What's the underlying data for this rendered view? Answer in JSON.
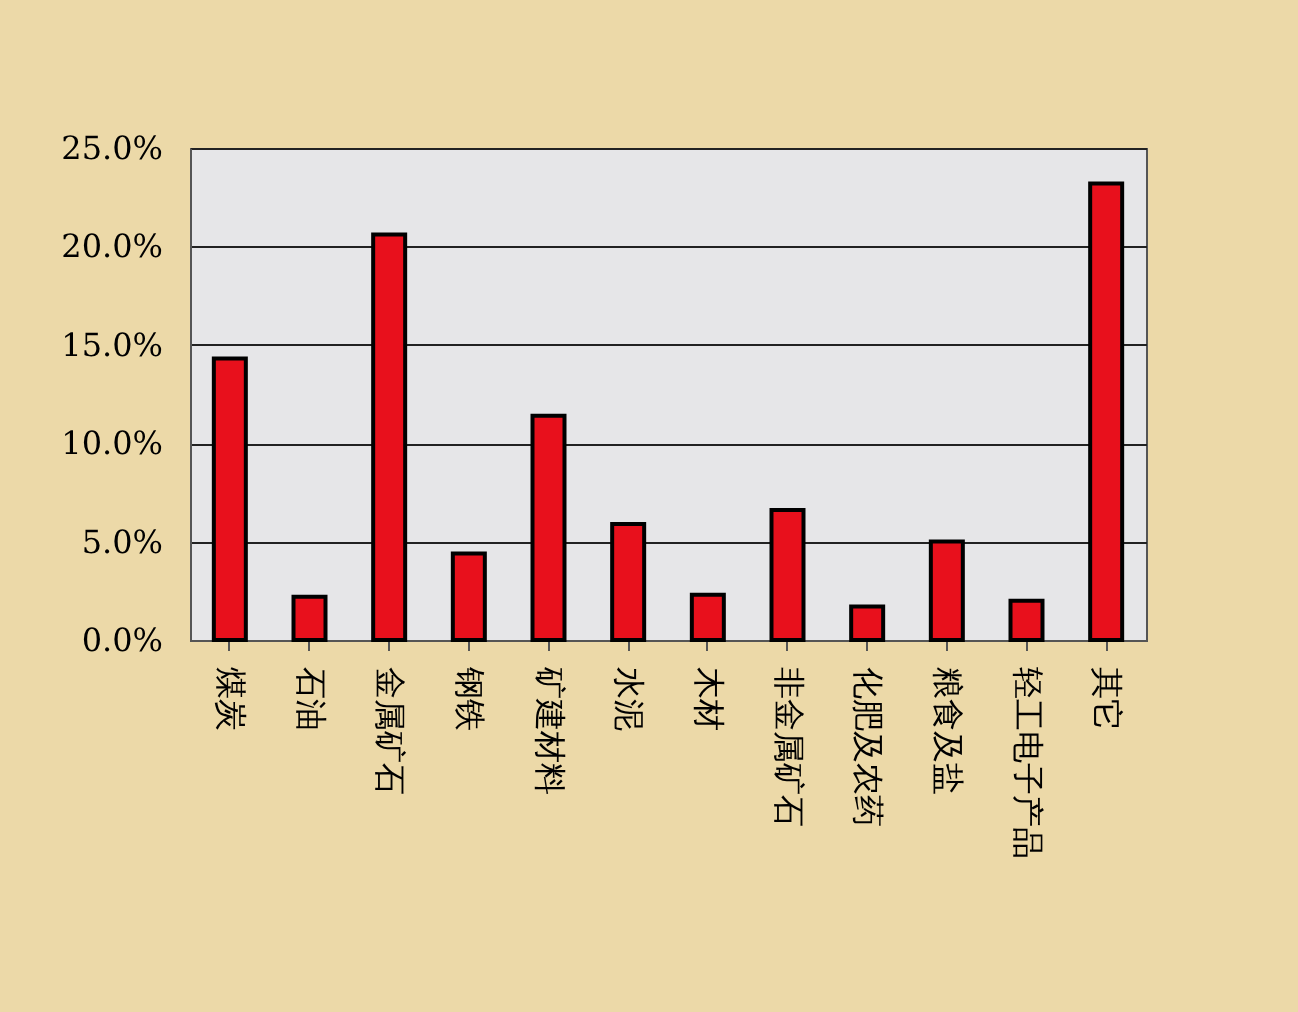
{
  "chart_data": {
    "type": "bar",
    "categories": [
      "煤炭",
      "石油",
      "金属矿石",
      "钢铁",
      "矿建材料",
      "水泥",
      "木材",
      "非金属矿石",
      "化肥及农药",
      "粮食及盐",
      "轻工电子产品",
      "其它"
    ],
    "values": [
      14.3,
      2.2,
      20.6,
      4.4,
      11.4,
      5.9,
      2.3,
      6.6,
      1.7,
      5.0,
      2.0,
      23.2
    ],
    "color": "#e8101c",
    "ylim": [
      0,
      25
    ],
    "yticks": [
      {
        "value": 0,
        "label": "0.0%"
      },
      {
        "value": 5,
        "label": "5.0%"
      },
      {
        "value": 10,
        "label": "10.0%"
      },
      {
        "value": 15,
        "label": "15.0%"
      },
      {
        "value": 20,
        "label": "20.0%"
      },
      {
        "value": 25,
        "label": "25.0%"
      }
    ],
    "grid": "y"
  }
}
